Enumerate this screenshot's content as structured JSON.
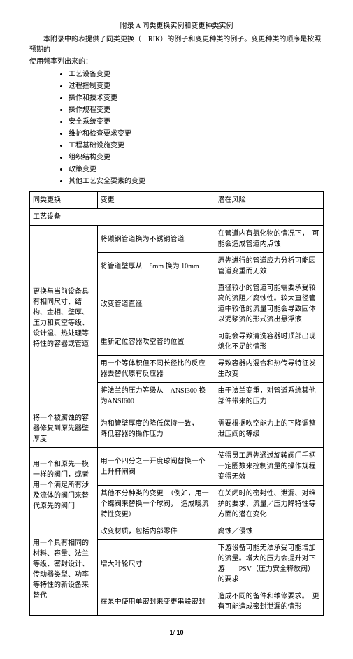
{
  "title": "附录 A 同类更换实例和变更种类实例",
  "intro1": "本附录中的表提供了同类更换（　RIK）的例子和变更种类的例子。变更种类的顺序是按照预期的",
  "intro2": "使用频率列出来的：",
  "bullets": [
    "工艺设备变更",
    "过程控制变更",
    "操作和技术变更",
    "操作规程变更",
    "安全系统变更",
    "维护和检查要求变更",
    "工程基础设施变更",
    "组织结构变更",
    "政策变更",
    "其他工艺安全要素的变更"
  ],
  "header": {
    "c1": "同类更换",
    "c2": "变更",
    "c3": "潜在风险"
  },
  "section1": "工艺设备",
  "group1": {
    "label": "更换与当前设备具有相同尺寸、结构、金相、壁厚、压力和真空等级、设计温、热处理等特性的容器或管道",
    "rows": [
      {
        "c2": "将碳钢管道换为不锈钢管道",
        "c3": "在管道内有氯化物的情况下，　可能会造成管道内点蚀"
      },
      {
        "c2": "将管道壁厚从　8mm 换为 10mm",
        "c3": "原先进行的管道应力分析可能因管道变重而无效"
      },
      {
        "c2": "改变管道直径",
        "c3": "直径较小的管道可能需要承受较高的流阻／腐蚀性。较大直径管道中较低的流量可能会导致固体以泥浆流的形式流出悬浮液"
      },
      {
        "c2": "重新定位容器吹空管的位置",
        "c3": "可能会导致清洗容器时顶部出现熄化不足的情形"
      },
      {
        "c2": "用一个等体积但不同长径比的反应器去替代原有反应器",
        "c3": "导致容器内混合和热传导特征发生改变"
      },
      {
        "c2": "将法兰的压力等级从　ANSI300 换为ANSI600",
        "c3": "由于法兰变重，对管道系统其他部件带来的压力"
      }
    ]
  },
  "group2": {
    "label": "将一个被腐蚀的容器修复到原先器壁厚度",
    "c2": "为和管壁厚度的降低保持一致，　　降低容器的操作压力",
    "c3": "需要根据吹空能力上的下降调整泄压阀的等级"
  },
  "group3": {
    "label": "用一个和原先一模一样的阀门，或者用一个满足所有涉及流体的阀门来替代原先的阀门",
    "rows": [
      {
        "c2": "用一个四分之一开度球阀替换一个上升杆闸阀",
        "c3": "使得员工原先通过旋转阀门手柄一定圈数来控制流量的操作规程变得无效"
      },
      {
        "c2": "其他不分种类的变更　（例如，用一个蝶阀来替换一个球阀，　造成晓流特性变更）",
        "c3": "在关闭时的密封性、泄漏、对维护的要求、流量／压力降特性等方面的潜在变化"
      }
    ]
  },
  "group4": {
    "label": "用一个具有相同的材料、容量、法兰等级、密封设计、传动器类型、功率等特性的新设备来替代",
    "rows": [
      {
        "c2": "改变材质，包括内部零件",
        "c3": "腐蚀／侵蚀"
      },
      {
        "c2": "增大叶轮尺寸",
        "c3": "下游设备可能无法承受可能增加的流量。增大的压力会提升对下游　　PSV（压力安全释放阀）的要求"
      },
      {
        "c2": "在泵中使用单密封来变更串联密封",
        "c3": "造成不同的备件和维修要求。　更有可能造成密封泄漏的情形"
      }
    ]
  },
  "pagenum_a": "1",
  "pagenum_b": "/",
  "pagenum_c": "10"
}
